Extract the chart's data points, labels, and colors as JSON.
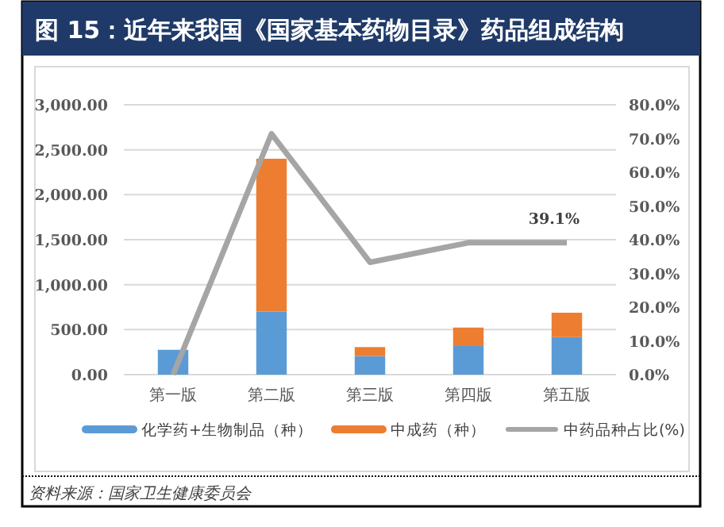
{
  "chart_data": {
    "type": "bar",
    "stacked": true,
    "title": "图 15：近年来我国《国家基本药物目录》药品组成结构",
    "categories": [
      "第一版",
      "第二版",
      "第三版",
      "第四版",
      "第五版"
    ],
    "series": [
      {
        "name": "化学药+生物制品（种）",
        "color": "#5b9bd5",
        "values": [
          276,
          700,
          206,
          318,
          417
        ]
      },
      {
        "name": "中成药（种）",
        "color": "#ed7d31",
        "values": [
          null,
          1700,
          100,
          205,
          271
        ]
      },
      {
        "name": "中药品种占比(%)",
        "type": "line",
        "axis": "y2",
        "color": "#a5a5a5",
        "values": [
          0,
          71.4,
          33.3,
          39.1,
          39.1
        ],
        "value_labels": [
          null,
          null,
          null,
          null,
          "39.1%"
        ]
      }
    ],
    "ylim": [
      0,
      3000
    ],
    "yticks": [
      {
        "value": 0,
        "label": "0.00"
      },
      {
        "value": 500,
        "label": "500.00"
      },
      {
        "value": 1000,
        "label": "1,000.00"
      },
      {
        "value": 1500,
        "label": "1,500.00"
      },
      {
        "value": 2000,
        "label": "2,000.00"
      },
      {
        "value": 2500,
        "label": "2,500.00"
      },
      {
        "value": 3000,
        "label": "3,000.00"
      }
    ],
    "y2lim": [
      0,
      80
    ],
    "y2ticks": [
      {
        "value": 0,
        "label": "0.0%"
      },
      {
        "value": 10,
        "label": "10.0%"
      },
      {
        "value": 20,
        "label": "20.0%"
      },
      {
        "value": 30,
        "label": "30.0%"
      },
      {
        "value": 40,
        "label": "40.0%"
      },
      {
        "value": 50,
        "label": "50.0%"
      },
      {
        "value": 60,
        "label": "60.0%"
      },
      {
        "value": 70,
        "label": "70.0%"
      },
      {
        "value": 80,
        "label": "80.0%"
      }
    ],
    "grid": "y",
    "legend": "bottom",
    "marker": "none",
    "annotations": [
      "资料来源：国家卫生健康委员会"
    ]
  }
}
